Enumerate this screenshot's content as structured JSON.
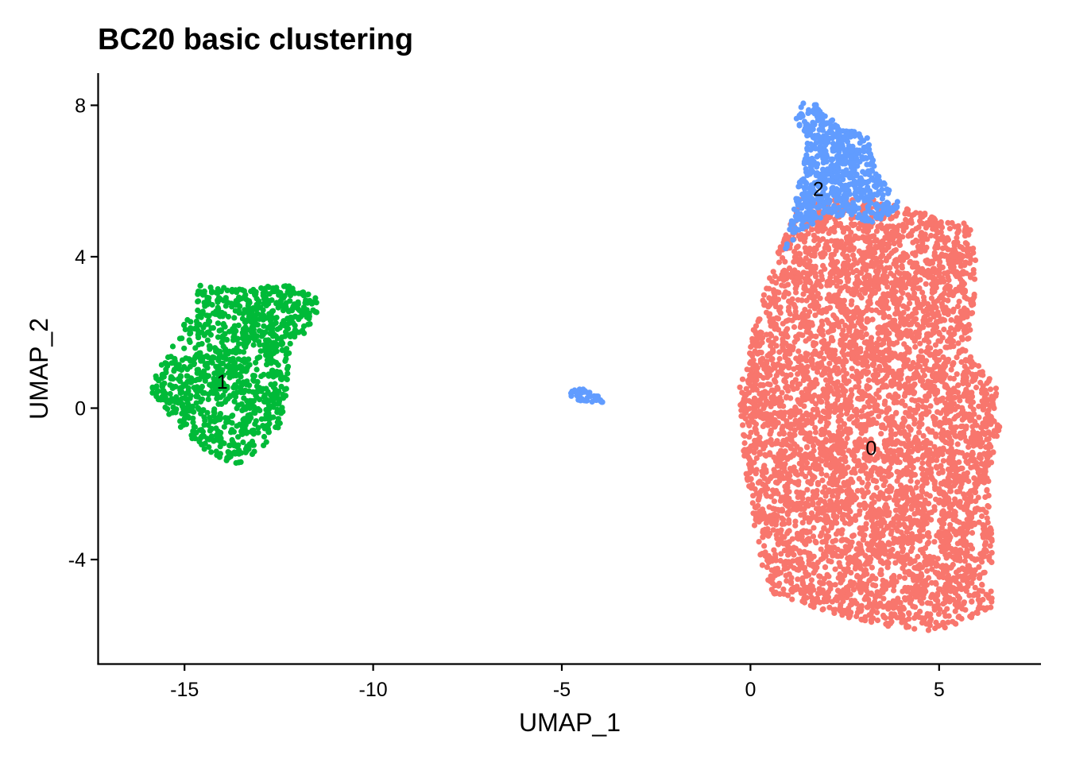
{
  "chart_data": {
    "type": "scatter",
    "title": "BC20 basic clustering",
    "xlabel": "UMAP_1",
    "ylabel": "UMAP_2",
    "xlim": [
      -17.3,
      7.7
    ],
    "ylim": [
      -6.75,
      8.85
    ],
    "x_ticks": [
      {
        "value": -15,
        "label": "-15"
      },
      {
        "value": -10,
        "label": "-10"
      },
      {
        "value": -5,
        "label": "-5"
      },
      {
        "value": 0,
        "label": "0"
      },
      {
        "value": 5,
        "label": "5"
      }
    ],
    "y_ticks": [
      {
        "value": -4,
        "label": "-4"
      },
      {
        "value": 0,
        "label": "0"
      },
      {
        "value": 4,
        "label": "4"
      },
      {
        "value": 8,
        "label": "8"
      }
    ],
    "grid": false,
    "legend": "none",
    "series": [
      {
        "cluster": "0",
        "color": "#F8766D",
        "label_pos": [
          3.2,
          -1.05
        ],
        "approx_points": 5200,
        "region_polygon": [
          [
            1.3,
            5.6
          ],
          [
            3.4,
            5.5
          ],
          [
            4.8,
            5.1
          ],
          [
            5.8,
            4.9
          ],
          [
            6.0,
            3.8
          ],
          [
            5.9,
            2.5
          ],
          [
            5.8,
            1.4
          ],
          [
            6.5,
            0.6
          ],
          [
            6.6,
            -0.5
          ],
          [
            6.3,
            -1.8
          ],
          [
            6.4,
            -3.5
          ],
          [
            6.4,
            -5.3
          ],
          [
            5.0,
            -5.9
          ],
          [
            3.8,
            -5.8
          ],
          [
            2.0,
            -5.4
          ],
          [
            0.6,
            -4.9
          ],
          [
            0.3,
            -4.2
          ],
          [
            0.0,
            -2.5
          ],
          [
            -0.2,
            -1.2
          ],
          [
            -0.3,
            0.5
          ],
          [
            0.1,
            2.2
          ],
          [
            0.6,
            3.8
          ],
          [
            0.9,
            4.5
          ]
        ]
      },
      {
        "cluster": "1",
        "color": "#00BA38",
        "label_pos": [
          -14.0,
          0.7
        ],
        "approx_points": 1100,
        "region_polygon": [
          [
            -14.6,
            3.3
          ],
          [
            -13.3,
            3.1
          ],
          [
            -12.5,
            3.3
          ],
          [
            -11.4,
            3.0
          ],
          [
            -11.5,
            2.3
          ],
          [
            -12.2,
            1.6
          ],
          [
            -12.3,
            0.4
          ],
          [
            -12.4,
            -0.4
          ],
          [
            -12.9,
            -1.0
          ],
          [
            -13.6,
            -1.6
          ],
          [
            -14.5,
            -1.1
          ],
          [
            -15.3,
            -0.3
          ],
          [
            -16.0,
            0.5
          ],
          [
            -15.4,
            1.5
          ],
          [
            -14.8,
            2.6
          ]
        ]
      },
      {
        "cluster": "2",
        "color": "#619CFF",
        "label_pos": [
          1.8,
          5.8
        ],
        "approx_points": 650,
        "region_polygon": [
          [
            1.3,
            8.1
          ],
          [
            1.8,
            8.0
          ],
          [
            2.4,
            7.4
          ],
          [
            3.1,
            7.2
          ],
          [
            3.3,
            6.3
          ],
          [
            3.8,
            5.7
          ],
          [
            4.0,
            5.2
          ],
          [
            3.2,
            4.9
          ],
          [
            2.2,
            5.1
          ],
          [
            1.3,
            4.7
          ],
          [
            0.9,
            4.1
          ],
          [
            1.1,
            5.3
          ],
          [
            1.4,
            6.3
          ],
          [
            1.5,
            7.1
          ],
          [
            1.2,
            7.6
          ]
        ]
      },
      {
        "cluster": "2-satellite",
        "color": "#619CFF",
        "approx_points": 45,
        "region_polygon": [
          [
            -4.8,
            0.5
          ],
          [
            -4.4,
            0.5
          ],
          [
            -4.0,
            0.3
          ],
          [
            -3.9,
            0.15
          ],
          [
            -4.3,
            0.15
          ],
          [
            -4.8,
            0.25
          ]
        ]
      }
    ]
  }
}
